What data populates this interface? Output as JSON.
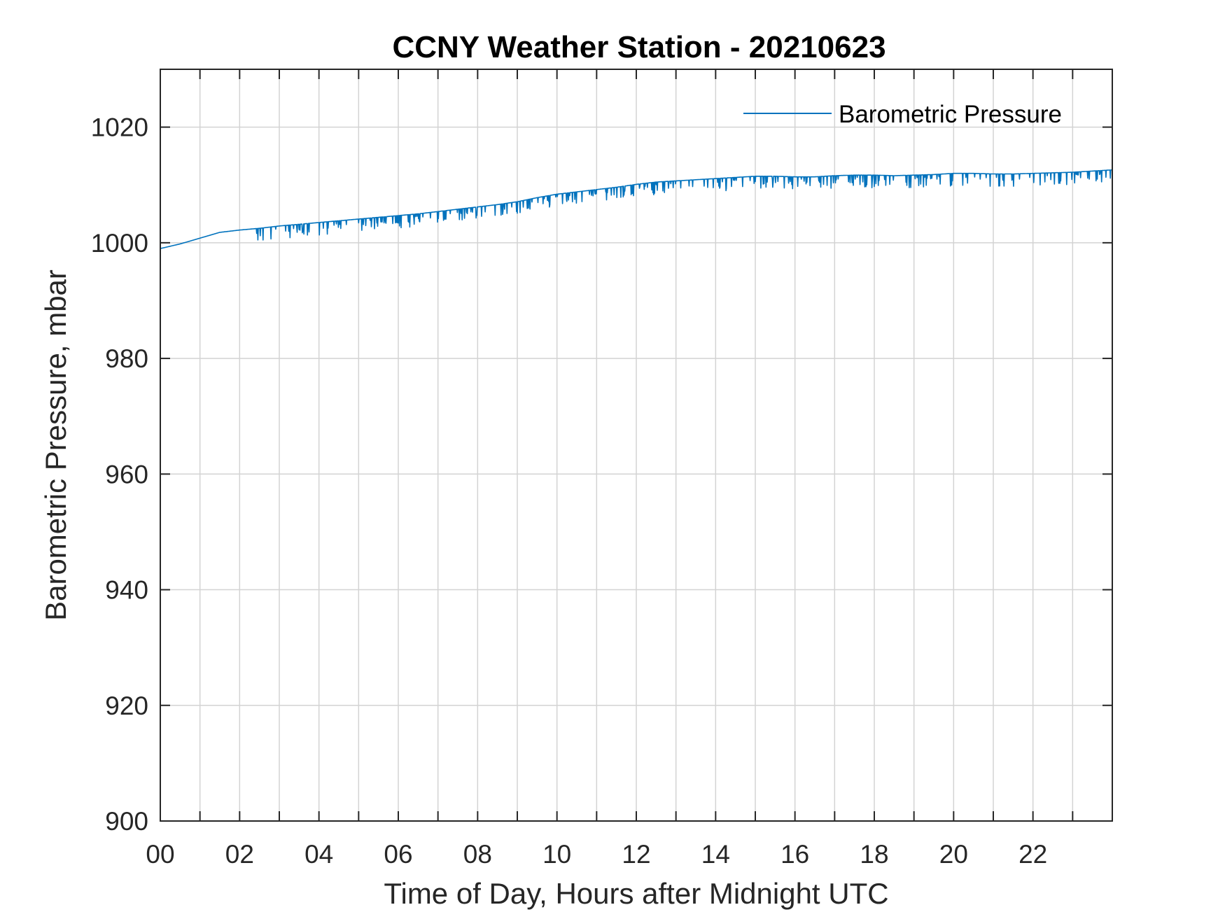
{
  "chart_data": {
    "type": "line",
    "title": "CCNY Weather Station - 20210623",
    "xlabel": "Time of Day, Hours after Midnight UTC",
    "ylabel": "Barometric Pressure, mbar",
    "xlim": [
      0,
      24
    ],
    "ylim": [
      900,
      1030
    ],
    "x_ticks": [
      0,
      2,
      4,
      6,
      8,
      10,
      12,
      14,
      16,
      18,
      20,
      22
    ],
    "x_tick_labels": [
      "00",
      "02",
      "04",
      "06",
      "08",
      "10",
      "12",
      "14",
      "16",
      "18",
      "20",
      "22"
    ],
    "y_ticks": [
      900,
      920,
      940,
      960,
      980,
      1000,
      1020
    ],
    "y_tick_labels": [
      "900",
      "920",
      "940",
      "960",
      "980",
      "1000",
      "1020"
    ],
    "grid": true,
    "legend_position": "top-right",
    "series": [
      {
        "name": "Barometric Pressure",
        "color": "#0072BD",
        "x": [
          0,
          0.5,
          1,
          1.5,
          2,
          2.5,
          3,
          3.5,
          4,
          4.5,
          5,
          5.5,
          6,
          6.5,
          7,
          7.5,
          8,
          8.5,
          9,
          9.5,
          10,
          10.5,
          11,
          11.5,
          12,
          12.5,
          13,
          13.5,
          14,
          14.5,
          15,
          15.5,
          16,
          16.5,
          17,
          17.5,
          18,
          18.5,
          19,
          19.5,
          20,
          20.5,
          21,
          21.5,
          22,
          22.5,
          23,
          23.5,
          24
        ],
        "values": [
          999.0,
          999.8,
          1000.8,
          1001.8,
          1002.2,
          1002.5,
          1002.9,
          1003.2,
          1003.5,
          1003.8,
          1004.1,
          1004.4,
          1004.7,
          1005.0,
          1005.4,
          1005.8,
          1006.2,
          1006.6,
          1007.1,
          1007.8,
          1008.4,
          1008.8,
          1009.2,
          1009.6,
          1010.1,
          1010.5,
          1010.7,
          1010.9,
          1011.1,
          1011.3,
          1011.5,
          1011.5,
          1011.4,
          1011.4,
          1011.6,
          1011.7,
          1011.7,
          1011.6,
          1011.7,
          1011.8,
          1012.0,
          1012.0,
          1011.9,
          1011.9,
          1012.0,
          1012.1,
          1012.2,
          1012.4,
          1012.6
        ]
      }
    ]
  }
}
